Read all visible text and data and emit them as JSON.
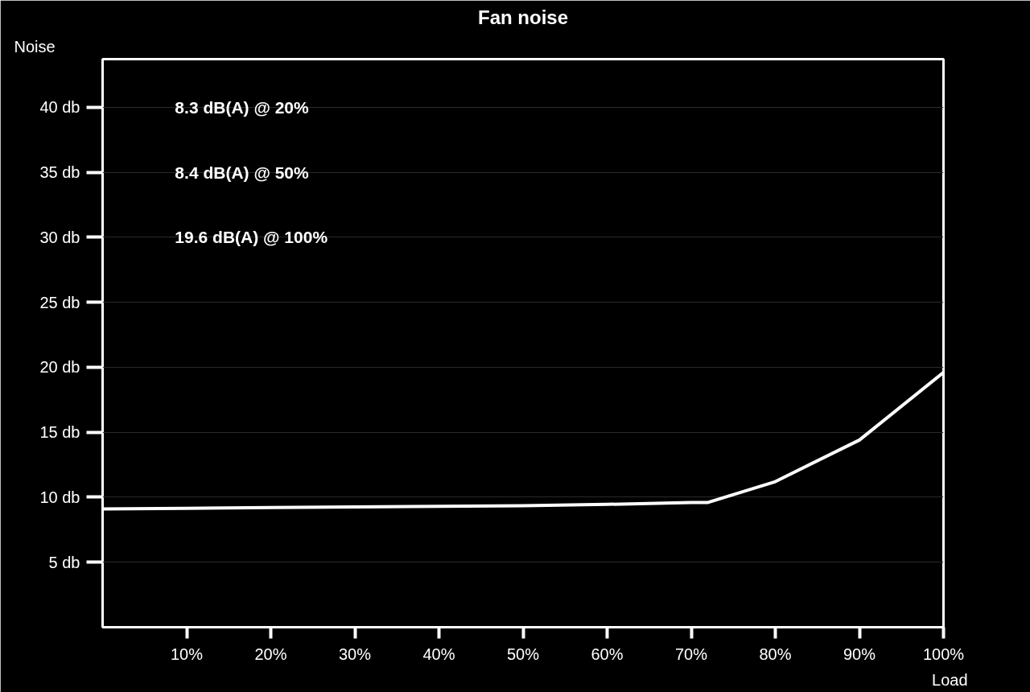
{
  "chart_data": {
    "type": "line",
    "title": "Fan noise",
    "xlabel": "Load",
    "ylabel": "Noise",
    "x": [
      0,
      10,
      20,
      30,
      40,
      50,
      60,
      70,
      72,
      80,
      90,
      100
    ],
    "series": [
      {
        "color": "#ffffff",
        "values": [
          9.1,
          9.15,
          9.2,
          9.25,
          9.3,
          9.35,
          9.45,
          9.6,
          9.6,
          11.2,
          14.4,
          19.6
        ]
      }
    ],
    "xlim": [
      0,
      100
    ],
    "ylim": [
      0,
      43.7
    ],
    "xticks": [
      {
        "value": 10,
        "label": "10%"
      },
      {
        "value": 20,
        "label": "20%"
      },
      {
        "value": 30,
        "label": "30%"
      },
      {
        "value": 40,
        "label": "40%"
      },
      {
        "value": 50,
        "label": "50%"
      },
      {
        "value": 60,
        "label": "60%"
      },
      {
        "value": 70,
        "label": "70%"
      },
      {
        "value": 80,
        "label": "80%"
      },
      {
        "value": 90,
        "label": "90%"
      },
      {
        "value": 100,
        "label": "100%"
      }
    ],
    "yticks": [
      {
        "value": 5,
        "label": "5 db"
      },
      {
        "value": 10,
        "label": "10 db"
      },
      {
        "value": 15,
        "label": "15 db"
      },
      {
        "value": 20,
        "label": "20 db"
      },
      {
        "value": 25,
        "label": "25 db"
      },
      {
        "value": 30,
        "label": "30 db"
      },
      {
        "value": 35,
        "label": "35 db"
      },
      {
        "value": 40,
        "label": "40 db"
      }
    ],
    "annotations": [
      "8.3 dB(A) @ 20%",
      "8.4 dB(A) @ 50%",
      "19.6 dB(A) @ 100%"
    ],
    "grid": "y",
    "marker": "none",
    "line_style": "solid"
  }
}
